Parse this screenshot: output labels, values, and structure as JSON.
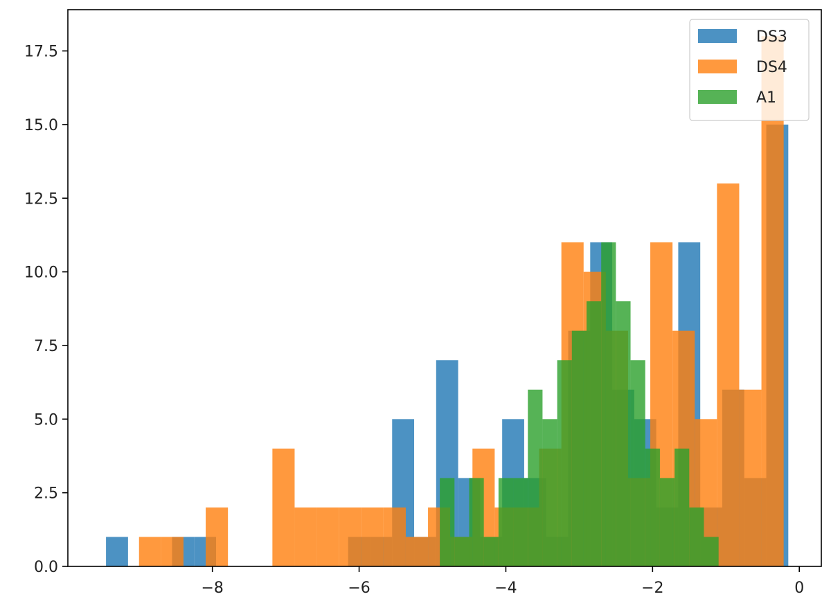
{
  "chart_data": {
    "type": "histogram",
    "title": "",
    "xlabel": "",
    "ylabel": "",
    "xlim": [
      -9.97,
      0.3
    ],
    "ylim": [
      0,
      18.9
    ],
    "x_ticks": [
      -8,
      -6,
      -4,
      -2,
      0
    ],
    "x_tick_labels": [
      "−8",
      "−6",
      "−4",
      "−2",
      "0"
    ],
    "y_ticks": [
      0.0,
      2.5,
      5.0,
      7.5,
      10.0,
      12.5,
      15.0,
      17.5
    ],
    "y_tick_labels": [
      "0.0",
      "2.5",
      "5.0",
      "7.5",
      "10.0",
      "12.5",
      "15.0",
      "17.5"
    ],
    "grid": false,
    "legend_position": "top-right",
    "series": [
      {
        "name": "DS3",
        "color": "#1f77b4",
        "bin_width": 0.3,
        "bins": [
          {
            "x0": -9.45,
            "count": 1
          },
          {
            "x0": -8.55,
            "count": 1
          },
          {
            "x0": -8.25,
            "count": 1
          },
          {
            "x0": -6.15,
            "count": 1
          },
          {
            "x0": -5.85,
            "count": 1
          },
          {
            "x0": -5.55,
            "count": 5
          },
          {
            "x0": -5.25,
            "count": 1
          },
          {
            "x0": -4.95,
            "count": 7
          },
          {
            "x0": -4.65,
            "count": 3
          },
          {
            "x0": -4.35,
            "count": 1
          },
          {
            "x0": -4.05,
            "count": 5
          },
          {
            "x0": -3.75,
            "count": 3
          },
          {
            "x0": -3.45,
            "count": 1
          },
          {
            "x0": -3.15,
            "count": 8
          },
          {
            "x0": -2.85,
            "count": 11
          },
          {
            "x0": -2.55,
            "count": 6
          },
          {
            "x0": -2.25,
            "count": 5
          },
          {
            "x0": -1.95,
            "count": 2
          },
          {
            "x0": -1.65,
            "count": 11
          },
          {
            "x0": -1.35,
            "count": 2
          },
          {
            "x0": -1.05,
            "count": 6
          },
          {
            "x0": -0.75,
            "count": 3
          },
          {
            "x0": -0.45,
            "count": 15
          }
        ]
      },
      {
        "name": "DS4",
        "color": "#ff7f0e",
        "bin_width": 0.303,
        "bins": [
          {
            "x0": -9.0,
            "count": 1
          },
          {
            "x0": -8.697,
            "count": 1
          },
          {
            "x0": -8.394,
            "count": 0
          },
          {
            "x0": -8.091,
            "count": 2
          },
          {
            "x0": -7.788,
            "count": 0
          },
          {
            "x0": -7.485,
            "count": 0
          },
          {
            "x0": -7.182,
            "count": 4
          },
          {
            "x0": -6.879,
            "count": 2
          },
          {
            "x0": -6.576,
            "count": 2
          },
          {
            "x0": -6.273,
            "count": 2
          },
          {
            "x0": -5.97,
            "count": 2
          },
          {
            "x0": -5.667,
            "count": 2
          },
          {
            "x0": -5.364,
            "count": 1
          },
          {
            "x0": -5.061,
            "count": 2
          },
          {
            "x0": -4.758,
            "count": 1
          },
          {
            "x0": -4.455,
            "count": 4
          },
          {
            "x0": -4.152,
            "count": 2
          },
          {
            "x0": -3.849,
            "count": 2
          },
          {
            "x0": -3.546,
            "count": 4
          },
          {
            "x0": -3.243,
            "count": 11
          },
          {
            "x0": -2.94,
            "count": 10
          },
          {
            "x0": -2.637,
            "count": 8
          },
          {
            "x0": -2.334,
            "count": 3
          },
          {
            "x0": -2.031,
            "count": 11
          },
          {
            "x0": -1.728,
            "count": 8
          },
          {
            "x0": -1.425,
            "count": 5
          },
          {
            "x0": -1.122,
            "count": 13
          },
          {
            "x0": -0.819,
            "count": 6
          },
          {
            "x0": -0.516,
            "count": 18
          }
        ]
      },
      {
        "name": "A1",
        "color": "#2ca02c",
        "bin_width": 0.2,
        "bins": [
          {
            "x0": -4.9,
            "count": 3
          },
          {
            "x0": -4.7,
            "count": 1
          },
          {
            "x0": -4.5,
            "count": 3
          },
          {
            "x0": -4.3,
            "count": 1
          },
          {
            "x0": -4.1,
            "count": 3
          },
          {
            "x0": -3.9,
            "count": 3
          },
          {
            "x0": -3.7,
            "count": 6
          },
          {
            "x0": -3.5,
            "count": 5
          },
          {
            "x0": -3.3,
            "count": 7
          },
          {
            "x0": -3.1,
            "count": 8
          },
          {
            "x0": -2.9,
            "count": 9
          },
          {
            "x0": -2.7,
            "count": 11
          },
          {
            "x0": -2.5,
            "count": 9
          },
          {
            "x0": -2.3,
            "count": 7
          },
          {
            "x0": -2.1,
            "count": 4
          },
          {
            "x0": -1.9,
            "count": 3
          },
          {
            "x0": -1.7,
            "count": 4
          },
          {
            "x0": -1.5,
            "count": 2
          },
          {
            "x0": -1.3,
            "count": 1
          }
        ]
      }
    ]
  }
}
